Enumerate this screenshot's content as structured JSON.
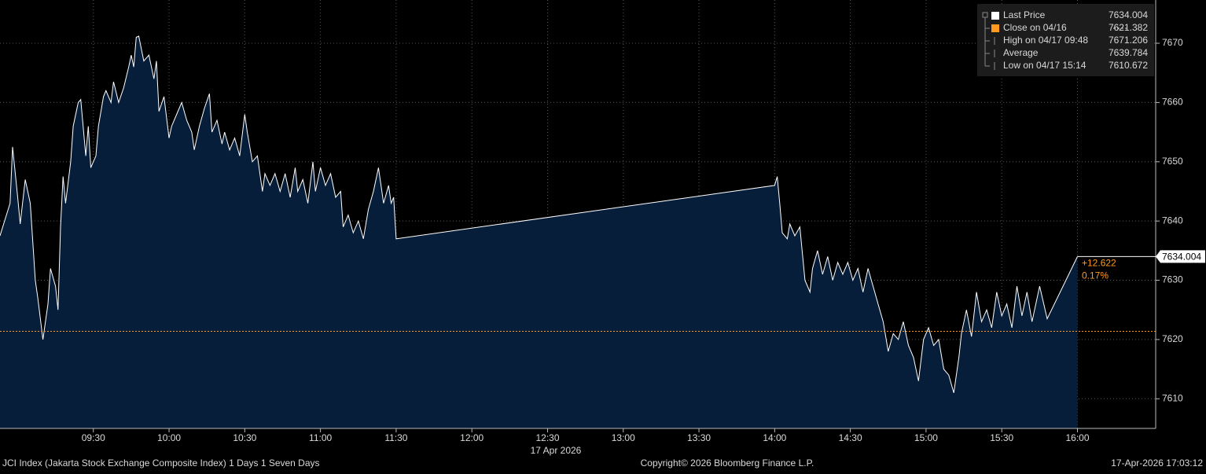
{
  "chart_data": {
    "type": "area",
    "series": [
      {
        "name": "Last Price",
        "color": "#ffffff",
        "fill": "#071e3b",
        "x": [
          "08:53",
          "08:57",
          "08:58",
          "09:00",
          "09:01",
          "09:03",
          "09:05",
          "09:07",
          "09:08",
          "09:10",
          "09:12",
          "09:13",
          "09:15",
          "09:16",
          "09:17",
          "09:18",
          "09:19",
          "09:21",
          "09:22",
          "09:24",
          "09:25",
          "09:27",
          "09:28",
          "09:29",
          "09:31",
          "09:32",
          "09:34",
          "09:35",
          "09:37",
          "09:38",
          "09:40",
          "09:42",
          "09:44",
          "09:45",
          "09:46",
          "09:47",
          "09:48",
          "09:50",
          "09:52",
          "09:54",
          "09:55",
          "09:56",
          "09:58",
          "10:00",
          "10:01",
          "10:03",
          "10:05",
          "10:07",
          "10:09",
          "10:10",
          "10:12",
          "10:14",
          "10:16",
          "10:17",
          "10:19",
          "10:21",
          "10:22",
          "10:24",
          "10:26",
          "10:28",
          "10:30",
          "10:31",
          "10:33",
          "10:35",
          "10:37",
          "10:38",
          "10:40",
          "10:42",
          "10:44",
          "10:46",
          "10:48",
          "10:50",
          "10:51",
          "10:53",
          "10:55",
          "10:57",
          "10:58",
          "11:00",
          "11:02",
          "11:04",
          "11:06",
          "11:08",
          "11:09",
          "11:11",
          "11:13",
          "11:15",
          "11:17",
          "11:19",
          "11:21",
          "11:23",
          "11:25",
          "11:27",
          "11:28",
          "11:29",
          "11:30",
          "14:00",
          "14:01",
          "14:02",
          "14:03",
          "14:05",
          "14:06",
          "14:08",
          "14:10",
          "14:12",
          "14:14",
          "14:15",
          "14:17",
          "14:19",
          "14:21",
          "14:23",
          "14:25",
          "14:27",
          "14:29",
          "14:31",
          "14:33",
          "14:35",
          "14:37",
          "14:39",
          "14:41",
          "14:43",
          "14:45",
          "14:47",
          "14:49",
          "14:51",
          "14:53",
          "14:55",
          "14:57",
          "14:59",
          "15:01",
          "15:03",
          "15:05",
          "15:07",
          "15:09",
          "15:11",
          "15:13",
          "15:14",
          "15:16",
          "15:18",
          "15:20",
          "15:22",
          "15:24",
          "15:26",
          "15:28",
          "15:30",
          "15:32",
          "15:34",
          "15:36",
          "15:38",
          "15:40",
          "15:42",
          "15:45",
          "15:48",
          "16:00"
        ],
        "values": [
          7637.5,
          7643,
          7652.5,
          7644,
          7639.5,
          7647,
          7643,
          7630,
          7627,
          7620,
          7626,
          7632,
          7629,
          7625,
          7639,
          7647.5,
          7643,
          7650,
          7656,
          7660,
          7660.5,
          7651,
          7656,
          7649,
          7651,
          7656,
          7661,
          7662,
          7660,
          7663.5,
          7660,
          7662.5,
          7666,
          7668,
          7666,
          7671,
          7671.2,
          7667,
          7668,
          7664,
          7667,
          7658.5,
          7661,
          7654,
          7656,
          7658,
          7660,
          7657,
          7655,
          7652,
          7656,
          7659,
          7661.5,
          7655,
          7657,
          7653,
          7655,
          7652,
          7654,
          7651,
          7658,
          7655,
          7650,
          7651,
          7645,
          7648,
          7646,
          7648,
          7645,
          7648,
          7644,
          7649,
          7645,
          7647,
          7643,
          7650,
          7645,
          7649,
          7646,
          7648,
          7644,
          7645,
          7639,
          7641,
          7638,
          7640,
          7637,
          7642,
          7645,
          7649,
          7643,
          7646,
          7643,
          7644,
          7637,
          7646,
          7647.5,
          7643,
          7638,
          7637,
          7639.5,
          7637.5,
          7639,
          7630,
          7628,
          7632,
          7635,
          7631,
          7634,
          7630,
          7633,
          7631,
          7633,
          7630,
          7632,
          7628,
          7632,
          7629,
          7626,
          7623,
          7618,
          7621,
          7620,
          7623,
          7619,
          7617,
          7613,
          7620,
          7622,
          7619,
          7620,
          7615,
          7614,
          7611,
          7617,
          7621,
          7625,
          7620.5,
          7628,
          7623,
          7625,
          7622,
          7628,
          7624,
          7626,
          7622,
          7629,
          7624,
          7628,
          7623,
          7629,
          7623.5,
          7634.004
        ]
      }
    ],
    "close_line": {
      "value": 7621.382,
      "color": "#ff9a1f"
    },
    "legend": [
      {
        "label": "Last Price",
        "value": 7634.004,
        "color": "#ffffff"
      },
      {
        "label": "Close on 04/16",
        "value": 7621.382,
        "color": "#ff9a1f"
      },
      {
        "label": "High on 04/17 09:48",
        "value": 7671.206
      },
      {
        "label": "Average",
        "value": 7639.784
      },
      {
        "label": "Low on 04/17 15:14",
        "value": 7610.672
      }
    ],
    "last_value": 7634.004,
    "change": {
      "value": 12.622,
      "label": "+12.622"
    },
    "change_pct": {
      "value": 0.17,
      "label": "0.17%"
    },
    "xlim": [
      "08:53",
      "16:31"
    ],
    "xticks": [
      "09:30",
      "10:00",
      "10:30",
      "11:00",
      "11:30",
      "12:00",
      "12:30",
      "13:00",
      "13:30",
      "14:00",
      "14:30",
      "15:00",
      "15:30",
      "16:00"
    ],
    "date_label": "17 Apr 2026",
    "ylim": [
      7605,
      7677.3
    ],
    "yticks": [
      7610,
      7620,
      7630,
      7640,
      7650,
      7660,
      7670
    ],
    "grid": true,
    "footer": {
      "left": "JCI Index (Jakarta Stock Exchange Composite Index) 1 Days 1 Seven Days",
      "center": "Copyright© 2026 Bloomberg Finance L.P.",
      "right": "17-Apr-2026 17:03:12"
    }
  }
}
